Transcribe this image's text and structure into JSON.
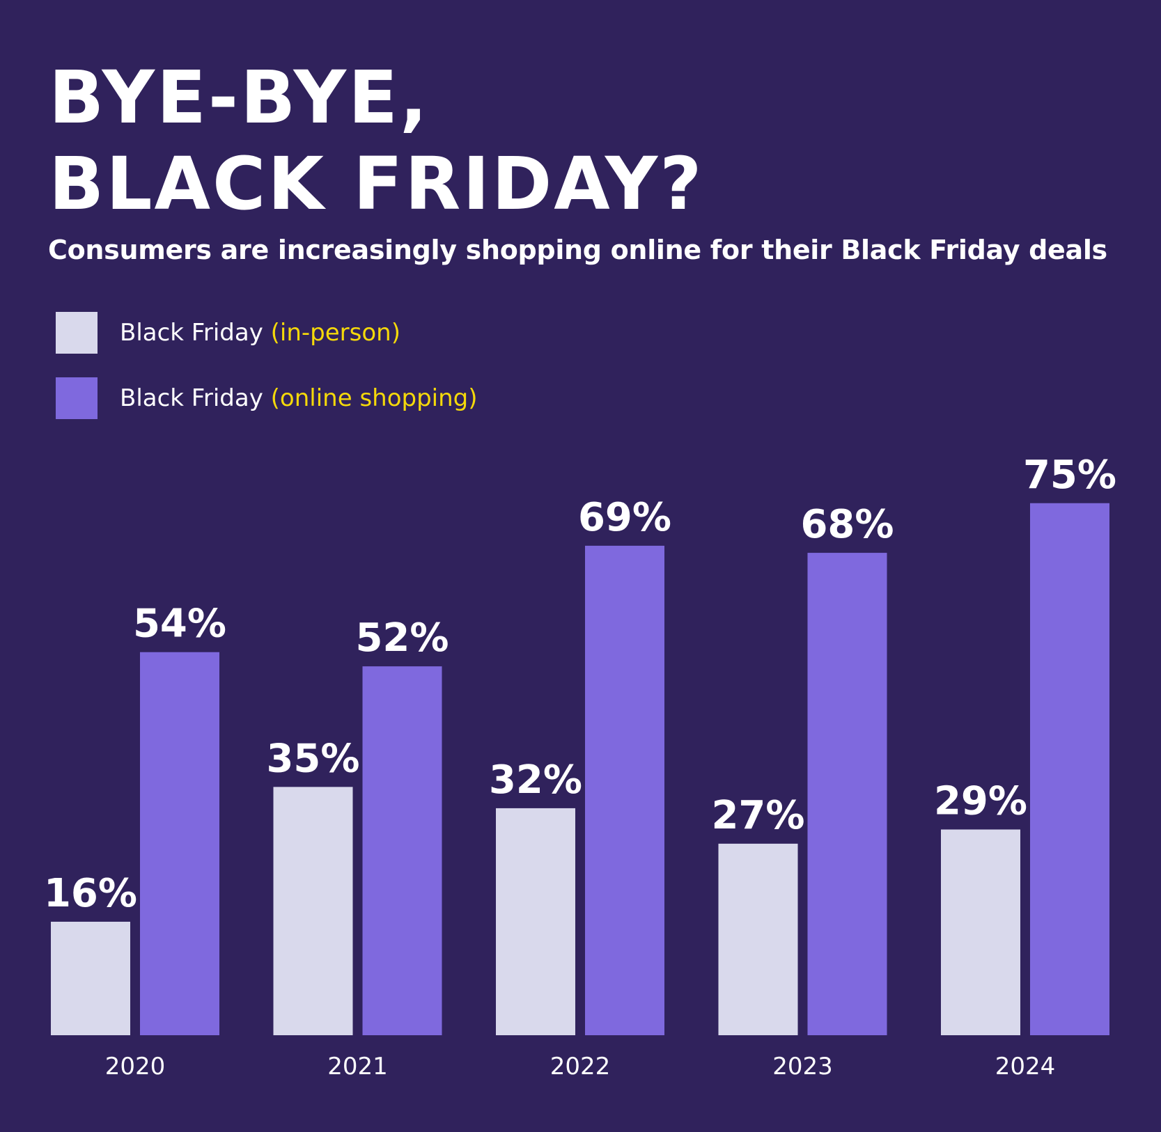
{
  "header": {
    "title_line1": "BYE-BYE,",
    "title_line2": "BLACK FRIDAY?",
    "subtitle": "Consumers are increasingly shopping online for their Black Friday deals"
  },
  "legend": {
    "items": [
      {
        "label": "Black Friday",
        "highlight": "(in-person)",
        "color": "#d9d9ec"
      },
      {
        "label": "Black Friday",
        "highlight": "(online shopping)",
        "color": "#7f69de"
      }
    ]
  },
  "colors": {
    "background": "#30225c",
    "highlight_text": "#f5d90a",
    "in_person": "#d9d9ec",
    "online": "#7f69de"
  },
  "chart_data": {
    "type": "bar",
    "categories": [
      "2020",
      "2021",
      "2022",
      "2023",
      "2024"
    ],
    "series": [
      {
        "name": "Black Friday (in-person)",
        "values": [
          16,
          35,
          32,
          27,
          29
        ]
      },
      {
        "name": "Black Friday (online shopping)",
        "values": [
          54,
          52,
          69,
          68,
          75
        ]
      }
    ],
    "value_suffix": "%",
    "title": "BYE-BYE, BLACK FRIDAY?",
    "xlabel": "",
    "ylabel": "",
    "ylim": [
      0,
      75
    ],
    "grid": false,
    "legend_position": "top-left"
  }
}
